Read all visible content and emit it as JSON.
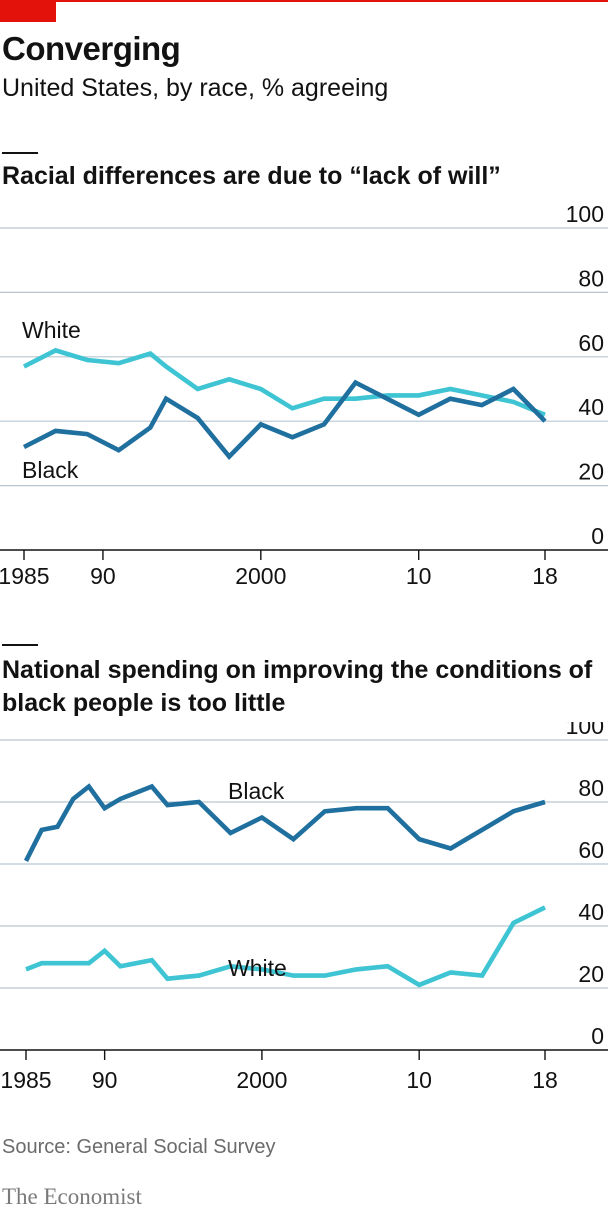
{
  "header": {
    "title": "Converging",
    "subtitle": "United States, by race, % agreeing"
  },
  "footer": {
    "source": "Source: General Social Survey",
    "brand": "The Economist"
  },
  "colors": {
    "accent": "#e3120b",
    "black_series": "#1f6f9f",
    "white_series": "#3ec4d2",
    "grid": "#b7c6d0"
  },
  "chart_data": [
    {
      "type": "line",
      "title": "Racial differences are due to “lack of will”",
      "ylim": [
        0,
        100
      ],
      "yticks": [
        0,
        20,
        40,
        60,
        80,
        100
      ],
      "xlim": [
        1985,
        2018
      ],
      "xticks": [
        1985,
        1990,
        2000,
        2010,
        2018
      ],
      "xtick_labels": [
        "1985",
        "90",
        "2000",
        "10",
        "18"
      ],
      "series": [
        {
          "name": "White",
          "x": [
            1985,
            1987,
            1989,
            1991,
            1993,
            1994,
            1996,
            1998,
            2000,
            2002,
            2004,
            2006,
            2008,
            2010,
            2012,
            2014,
            2016,
            2018
          ],
          "y": [
            57,
            62,
            59,
            58,
            61,
            57,
            50,
            53,
            50,
            44,
            47,
            47,
            48,
            48,
            50,
            48,
            46,
            42
          ]
        },
        {
          "name": "Black",
          "x": [
            1985,
            1987,
            1989,
            1991,
            1993,
            1994,
            1996,
            1998,
            2000,
            2002,
            2004,
            2006,
            2008,
            2010,
            2012,
            2014,
            2016,
            2018
          ],
          "y": [
            32,
            37,
            36,
            31,
            38,
            47,
            41,
            29,
            39,
            35,
            39,
            52,
            47,
            42,
            47,
            45,
            50,
            40
          ]
        }
      ]
    },
    {
      "type": "line",
      "title": "National spending on improving the conditions of black people is too little",
      "ylim": [
        0,
        100
      ],
      "yticks": [
        0,
        20,
        40,
        60,
        80,
        100
      ],
      "xlim": [
        1985,
        2018
      ],
      "xticks": [
        1985,
        1990,
        2000,
        2010,
        2018
      ],
      "xtick_labels": [
        "1985",
        "90",
        "2000",
        "10",
        "18"
      ],
      "series": [
        {
          "name": "Black",
          "x": [
            1985,
            1986,
            1987,
            1988,
            1989,
            1990,
            1991,
            1993,
            1994,
            1996,
            1998,
            2000,
            2002,
            2004,
            2006,
            2008,
            2010,
            2012,
            2014,
            2016,
            2018
          ],
          "y": [
            61,
            71,
            72,
            81,
            85,
            78,
            81,
            85,
            79,
            80,
            70,
            75,
            68,
            77,
            78,
            78,
            68,
            65,
            71,
            77,
            80
          ]
        },
        {
          "name": "White",
          "x": [
            1985,
            1986,
            1987,
            1988,
            1989,
            1990,
            1991,
            1993,
            1994,
            1996,
            1998,
            2000,
            2002,
            2004,
            2006,
            2008,
            2010,
            2012,
            2014,
            2016,
            2018
          ],
          "y": [
            26,
            28,
            28,
            28,
            28,
            32,
            27,
            29,
            23,
            24,
            27,
            26,
            24,
            24,
            26,
            27,
            21,
            25,
            24,
            41,
            46
          ]
        }
      ]
    }
  ]
}
